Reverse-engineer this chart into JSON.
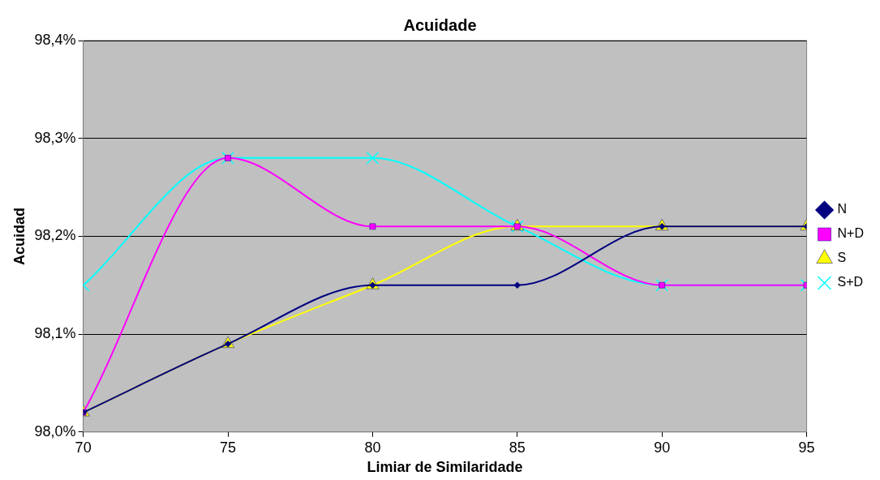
{
  "chart_data": {
    "type": "line",
    "title": "Acuidade",
    "xlabel": "Limiar de Similaridade",
    "ylabel": "Acuidad",
    "x": [
      70,
      75,
      80,
      85,
      90,
      95
    ],
    "xlim": [
      70,
      95
    ],
    "xticks": [
      70,
      75,
      80,
      85,
      90,
      95
    ],
    "ylim": [
      98.0,
      98.4
    ],
    "yticks": [
      {
        "value": 98.0,
        "label": "98,0%"
      },
      {
        "value": 98.1,
        "label": "98,1%"
      },
      {
        "value": 98.2,
        "label": "98,2%"
      },
      {
        "value": 98.3,
        "label": "98,3%"
      },
      {
        "value": 98.4,
        "label": "98,4%"
      }
    ],
    "grid": "y",
    "legend": "right",
    "series": [
      {
        "name": "N",
        "color": "#000080",
        "marker": "diamond",
        "values": [
          98.02,
          98.09,
          98.15,
          98.15,
          98.21,
          98.21
        ]
      },
      {
        "name": "N+D",
        "color": "#ff00ff",
        "marker": "square",
        "values": [
          98.02,
          98.28,
          98.21,
          98.21,
          98.15,
          98.15
        ]
      },
      {
        "name": "S",
        "color": "#ffff00",
        "marker": "triangle",
        "values": [
          98.02,
          98.09,
          98.15,
          98.21,
          98.21,
          98.21
        ]
      },
      {
        "name": "S+D",
        "color": "#00ffff",
        "marker": "cross",
        "values": [
          98.15,
          98.28,
          98.28,
          98.21,
          98.15,
          98.15
        ]
      }
    ]
  }
}
